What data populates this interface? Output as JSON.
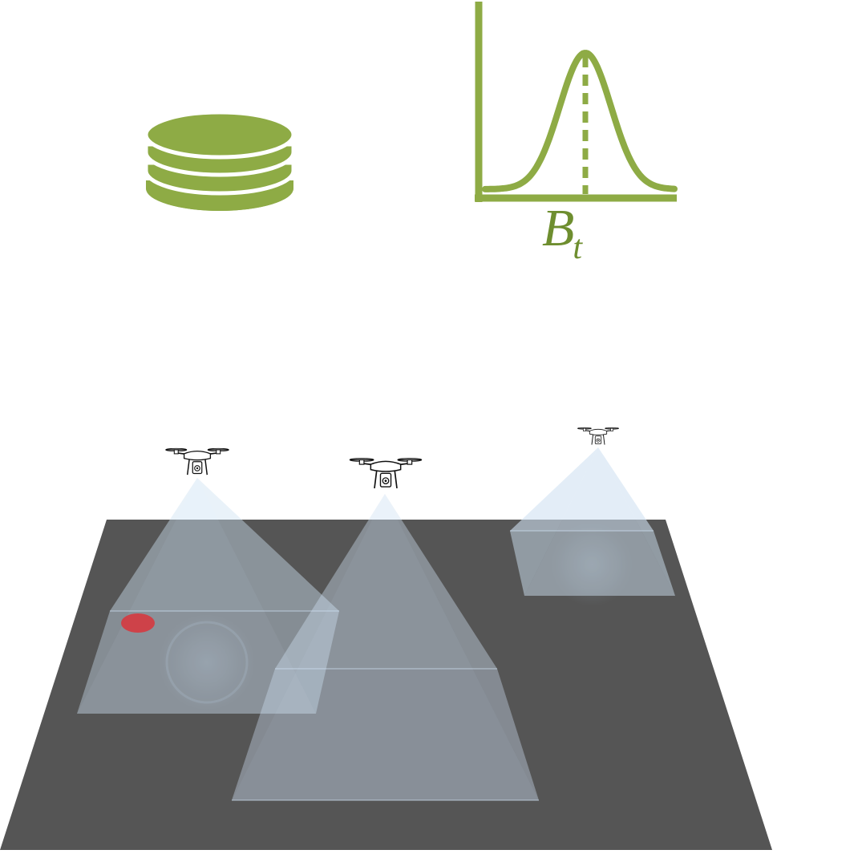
{
  "belief": {
    "label_main": "B",
    "label_sub": "t"
  },
  "colors": {
    "accent": "#8eab45",
    "label": "#6e8e2f",
    "ground": "#555555",
    "camera_fov": "#cfe2f3",
    "target": "#d9343b"
  },
  "icons": {
    "database": "database-icon",
    "drone": "drone-icon"
  },
  "drones": [
    {
      "id": "drone-1"
    },
    {
      "id": "drone-2"
    },
    {
      "id": "drone-3"
    }
  ],
  "target": {
    "name": "target-marker"
  }
}
